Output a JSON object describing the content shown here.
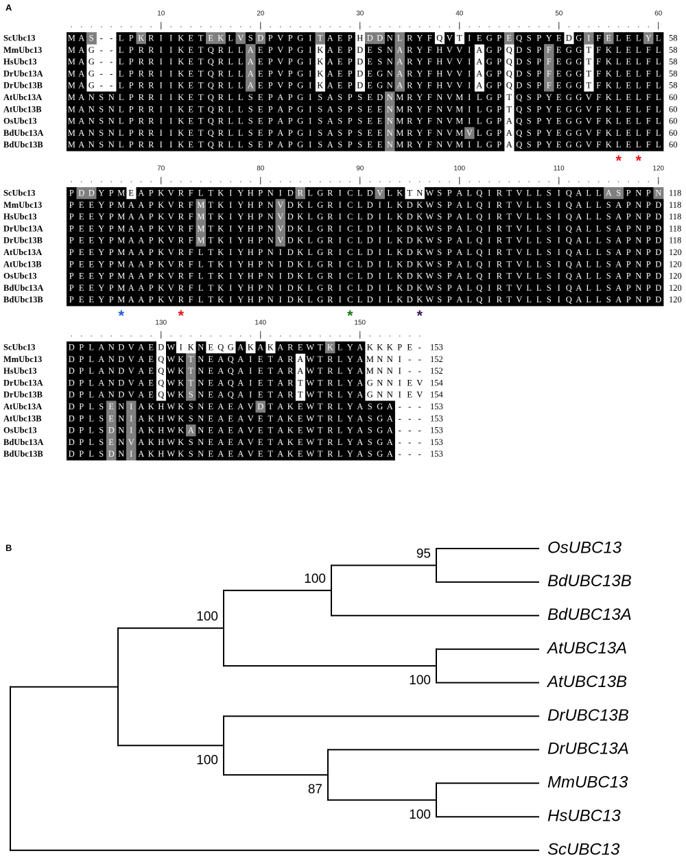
{
  "panel_a": {
    "label": "A",
    "blocks": [
      {
        "ruler": [
          10,
          20,
          30,
          40,
          50,
          60
        ],
        "rows": [
          {
            "name": "ScUbc13",
            "sequence": "MAS--LPKRIIKETEKLVSDPVPGITAEPHDDNLRYFQVTIEGPEQSPYEDGIFELELYL",
            "shading": "kkgwwkkgkkkkkkggkgkgkkkkkgkkkwggkgkkkwkwkkkkgkkkkkwkgkgkkkgk",
            "end": 58
          },
          {
            "name": "MmUbc13",
            "sequence": "MAG--LPRRIIKETQRLLAEPVPGIKAEPDESNARYFHVVIAGPQDSPFEGGTFKLELFL",
            "shading": "kkwwwkkkkkkkkkkkkkgkkkkkkwkkkwkkkgkkkkkkkwkkwkkkgkkkwkkkkkkk",
            "end": 58
          },
          {
            "name": "HsUbc13",
            "sequence": "MAG--LPRRIIKETQRLLAEPVPGIKAEPDESNARYFHVVIAGPQDSPFEGGTFKLELFL",
            "shading": "kkwwwkkkkkkkkkkkkkgkkkkkkwkkkwkkkgkkkkkkkwkkwkkkgkkkwkkkkkkk",
            "end": 58
          },
          {
            "name": "DrUbc13A",
            "sequence": "MAG--LPRRIIKETQRLLAEPVPGIKAEPDEGNARYFHVVIAGPQDSPFEGGTFKLELFL",
            "shading": "kkwwwkkkkkkkkkkkkkgkkkkkkwkkkwkkkgkkkkkkkwkkwkkkgkkkwkkkkkkk",
            "end": 58
          },
          {
            "name": "DrUbc13B",
            "sequence": "MAG--LPRRIIKETQRLLAEPVPGIKAEPDEGNARYFHVVIAGPQDSPFEGGTFKLELFL",
            "shading": "kkwwwkkkkkkkkkkkkkgkkkkkkwkkkwkkkgkkkkkkkwkkwkkkgkkkwkkkkkkk",
            "end": 58
          },
          {
            "name": "AtUbc13A",
            "sequence": "MANSNLPRRIIKETQRLLSEPAPGISASPSEDNMRYFNVMILGPTQSPYEGGVFKLELFL",
            "shading": "kkkkkkkkkkkkkkkkkkkkkkkkkkkkkkkkgkkkkkkkkkkkwkkkkkkkkkkkkkkk",
            "end": 60
          },
          {
            "name": "AtUbc13B",
            "sequence": "MANSNLPRRIIKETQRLLSEPAPGISASPSEENMRYFNVMILGPTQSPYEGGVFKLELFL",
            "shading": "kkkkkkkkkkkkkkkkkkkkkkkkkkkkkkkkgkkkkkkkkkkkwkkkkkkkkkkkkkkk",
            "end": 60
          },
          {
            "name": "OsUbc13",
            "sequence": "MANSNLPRRIIKETQRLLSEPAPGISASPSEENMRYFNVMILGPAQSPYEGGVFKLELFL",
            "shading": "kkkkkkkkkkkkkkkkkkkkkkkkkkkkkkkkgkkkkkkkkkkkwkkkkkkkkkkkkkkk",
            "end": 60
          },
          {
            "name": "BdUbc13A",
            "sequence": "MANSNLPRRIIKETQRLLSEPAPGISASPSEENMRYFNVMVLGPAQSPYEGGVFKLELFL",
            "shading": "kkkkkkkkkkkkkkkkkkkkkkkkkkkkkkkkgkkkkkkkgkkkwkkkkkkkkkkkkkkk",
            "end": 60
          },
          {
            "name": "BdUbc13B",
            "sequence": "MANSNLPRRIIKETQRLLSEPAPGISASPSEENMRYFNVMILGPAQSPYEGGVFKLELFL",
            "shading": "kkkkkkkkkkkkkkkkkkkkkkkkkkkkkkkkgkkkkkkkkkkkwkkkkkkkkkkkkkkk",
            "end": 60
          }
        ],
        "markers": [
          {
            "symbol": "*",
            "column": 56,
            "color": "#e8141c"
          },
          {
            "symbol": "*",
            "column": 58,
            "color": "#e8141c"
          }
        ]
      },
      {
        "ruler": [
          70,
          80,
          90,
          100,
          110,
          120
        ],
        "rows": [
          {
            "name": "ScUbc13",
            "sequence": "PDDYPMEAPKVRFLTKIYHPNIDRLGRICLDVLKTNWSPALQIRTVLLSIQALLASPNPN",
            "shading": "kggkkkwkkkkkkkkkkkkkkkkgkkkkkkkgkkwwkkkkkkkkkkkkkkkkkkggkkkg",
            "end": 118
          },
          {
            "name": "MmUbc13",
            "sequence": "PEEYPMAAPKVRFMTKIYHPNVDKLGRICLDILKDKWSPALQIRTVLLSIQALLSAPNPD",
            "shading": "kkkkkkkkkkkkkgkkkkkkkgkkkkkkkkkkkkkkkkkkkkkkkkkkkkkkkkkkkkkk",
            "end": 118
          },
          {
            "name": "HsUbc13",
            "sequence": "PEEYPMAAPKVRFMTKIYHPNVDKLGRICLDILKDKWSPALQIRTVLLSIQALLSAPNPD",
            "shading": "kkkkkkkkkkkkkgkkkkkkkgkkkkkkkkkkkkkkkkkkkkkkkkkkkkkkkkkkkkkk",
            "end": 118
          },
          {
            "name": "DrUbc13A",
            "sequence": "PEEYPMAAPKVRFMTKIYHPNVDKLGRICLDILKDKWSPALQIRTVLLSIQALLSAPNPD",
            "shading": "kkkkkkkkkkkkkgkkkkkkkgkkkkkkkkkkkkkkkkkkkkkkkkkkkkkkkkkkkkkk",
            "end": 118
          },
          {
            "name": "DrUbc13B",
            "sequence": "PEEYPMAAPKVRFMTKIYHPNVDKLGRICLDILKDKWSPALQIRTVLLSIQALLSAPNPD",
            "shading": "kkkkkkkkkkkkkgkkkkkkkgkkkkkkkkkkkkkkkkkkkkkkkkkkkkkkkkkkkkkk",
            "end": 118
          },
          {
            "name": "AtUbc13A",
            "sequence": "PEEYPMAAPKVRFLTKIYHPNIDKLGRICLDILKDKWSPALQIRTVLLSIQALLSAPNPD",
            "shading": "kkkkkkkkkkkkkkkkkkkkkkkkkkkkkkkkkkkkkkkkkkkkkkkkkkkkkkkkkkkk",
            "end": 120
          },
          {
            "name": "AtUbc13B",
            "sequence": "PEEYPMAAPKVRFLTKIYHPNIDKLGRICLDILKDKWSPALQIRTVLLSIQALLSAPNPD",
            "shading": "kkkkkkkkkkkkkkkkkkkkkkkkkkkkkkkkkkkkkkkkkkkkkkkkkkkkkkkkkkkk",
            "end": 120
          },
          {
            "name": "OsUbc13",
            "sequence": "PEEYPMAAPKVRFLTKIYHPNIDKLGRICLDILKDKWSPALQIRTVLLSIQALLSAPNPD",
            "shading": "kkkkkkkkkkkkkkkkkkkkkkkkkkkkkkkkkkkkkkkkkkkkkkkkkkkkkkkkkkkk",
            "end": 120
          },
          {
            "name": "BdUbc13A",
            "sequence": "PEEYPMAAPKVRFLTKIYHPNIDKLGRICLDILKDKWSPALQIRTVLLSIQALLSAPNPD",
            "shading": "kkkkkkkkkkkkkkkkkkkkkkkkkkkkkkkkkkkkkkkkkkkkkkkkkkkkkkkkkkkk",
            "end": 120
          },
          {
            "name": "BdUbc13B",
            "sequence": "PEEYPMAAPKVRFLTKIYHPNIDKLGRICLDILKDKWSPALQIRTVLLSIQALLSAPNPD",
            "shading": "kkkkkkkkkkkkkkkkkkkkkkkkkkkkkkkkkkkkkkkkkkkkkkkkkkkkkkkkkkkk",
            "end": 120
          }
        ],
        "markers": [
          {
            "symbol": "*",
            "column": 66,
            "color": "#1f5bd8"
          },
          {
            "symbol": "*",
            "column": 72,
            "color": "#e8141c"
          },
          {
            "symbol": "*",
            "column": 89,
            "color": "#1a7a1a"
          },
          {
            "symbol": "*",
            "column": 96,
            "color": "#3d1a5c"
          }
        ]
      },
      {
        "ruler": [
          130,
          140,
          150
        ],
        "rows": [
          {
            "name": "ScUbc13",
            "sequence": "DPLANDVAEDWIKNEQGAKAKAREWTKLYAKKKPE-",
            "shading": "kkkkkkkkkwkwwkwwwkwkwkkkkkgkkkwwwwww",
            "end": 153
          },
          {
            "name": "MmUbc13",
            "sequence": "DPLANDVAEQWKTNEAQAIETARAWTRLYAMNNI--",
            "shading": "kkkkkkkkkwkkgkkkkkkkkkkwkkkkkkwwwwww",
            "end": 152
          },
          {
            "name": "HsUbc13",
            "sequence": "DPLANDVAEQWKTNEAQAIETARAWTRLYAMNNI--",
            "shading": "kkkkkkkkkwkkgkkkkkkkkkkwkkkkkkwwwwww",
            "end": 152
          },
          {
            "name": "DrUbc13A",
            "sequence": "DPLANDVAEQWKTNEAQAIETARTWTRLYAGNNIEV",
            "shading": "kkkkkkkkkwkkgkkkkkkkkkkwkkkkkkwwwwww",
            "end": 154
          },
          {
            "name": "DrUbc13B",
            "sequence": "DPLANDVAEQWKSNEAQAIETARTWTRLYAGNNIEV",
            "shading": "kkkkkkkkkwkkgkkkkkkkkkkwkkkkkkwwwwww",
            "end": 154
          },
          {
            "name": "AtUbc13A",
            "sequence": "DPLSENIAKHWKSNEAEAVDTAKEWTRLYASGA---",
            "shading": "kkkkgkgkkkkkkkkkkkkgkkkkkkkkkkkkkwww",
            "end": 153
          },
          {
            "name": "AtUbc13B",
            "sequence": "DPLSENIAKHWKSNEAEAVETAKEWTRLYASGA---",
            "shading": "kkkkgkgkkkkkkkkkkkkkkkkkkkkkkkkkkwww",
            "end": 153
          },
          {
            "name": "OsUbc13",
            "sequence": "DPLSDNIAKHWKANEAEAVETAKEWTRLYASGA---",
            "shading": "kkkkgkgkkkkkgkkkkkkkkkkkkkkkkkkkkwww",
            "end": 153
          },
          {
            "name": "BdUbc13A",
            "sequence": "DPLSENVAKHWKSNEAEAVETAKEWTRLYASGA---",
            "shading": "kkkkgkgkkkkkkkkkkkkkkkkkkkkkkkkkkwww",
            "end": 153
          },
          {
            "name": "BdUbc13B",
            "sequence": "DPLSDNIAKHWKSNEAEAVETAKEWTRLYASGA---",
            "shading": "kkkkgkgkkkkkkkkkkkkkkkkkkkkkkkkkkwww",
            "end": 153
          }
        ]
      }
    ]
  },
  "panel_b": {
    "label": "B",
    "tree": {
      "children": [
        {
          "children": [
            {
              "bootstrap": 100,
              "children": [
                {
                  "bootstrap": 100,
                  "children": [
                    {
                      "bootstrap": 95,
                      "children": [
                        {
                          "name": "OsUBC13"
                        },
                        {
                          "name": "BdUBC13B"
                        }
                      ]
                    },
                    {
                      "name": "BdUBC13A"
                    }
                  ]
                },
                {
                  "bootstrap": 100,
                  "children": [
                    {
                      "name": "AtUBC13A"
                    },
                    {
                      "name": "AtUBC13B"
                    }
                  ]
                }
              ]
            },
            {
              "bootstrap": 100,
              "children": [
                {
                  "name": "DrUBC13B"
                },
                {
                  "bootstrap": 87,
                  "children": [
                    {
                      "name": "DrUBC13A"
                    },
                    {
                      "bootstrap": 100,
                      "children": [
                        {
                          "name": "MmUBC13"
                        },
                        {
                          "name": "HsUBC13"
                        }
                      ]
                    }
                  ]
                }
              ]
            }
          ]
        },
        {
          "name": "ScUBC13"
        }
      ]
    }
  }
}
